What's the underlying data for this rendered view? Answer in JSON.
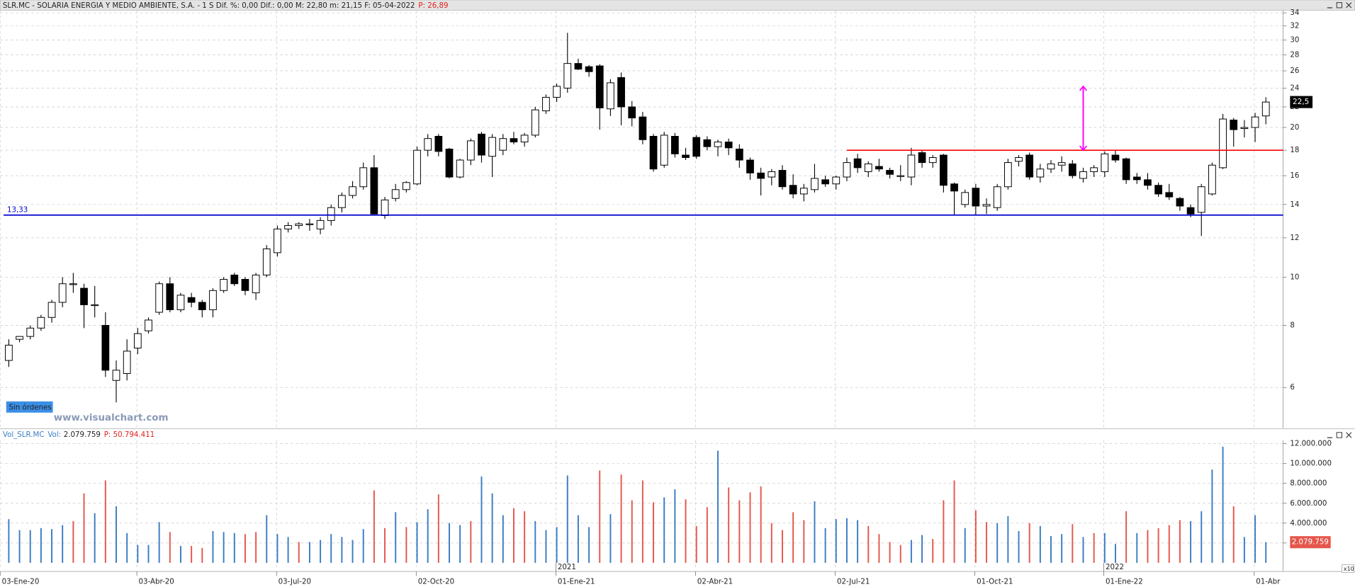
{
  "header": {
    "text": "SLR.MC - SOLARIA ENERGIA Y MEDIO AMBIENTE, S.A. -  1 S  Dif. %: 0,00  Dif.: 0,00  M: 22,80  m: 21,15  F: 05-04-2022",
    "price": "P: 26,89"
  },
  "volume_header": {
    "name": "Vol_SLR.MC",
    "vol_label": "Vol:",
    "price": "P: 50.794.411"
  },
  "orders_label": "Sin órdenes",
  "watermark": "www.visualchart.com",
  "scale_label": "x10",
  "chart_data": [
    {
      "type": "candlestick",
      "categories": [
        "03-Ene-20",
        null,
        null,
        null,
        null,
        null,
        null,
        null,
        null,
        null,
        null,
        null,
        "03-Abr-20",
        null,
        null,
        null,
        null,
        null,
        null,
        null,
        null,
        null,
        null,
        null,
        null,
        "03-Jul-20",
        null,
        null,
        null,
        null,
        null,
        null,
        null,
        null,
        null,
        null,
        null,
        null,
        "02-Oct-20",
        null,
        null,
        null,
        null,
        null,
        null,
        null,
        null,
        null,
        null,
        null,
        null,
        "01-Ene-21",
        null,
        null,
        null,
        null,
        null,
        null,
        null,
        null,
        null,
        null,
        null,
        null,
        "02-Abr-21",
        null,
        null,
        null,
        null,
        null,
        null,
        null,
        null,
        null,
        null,
        null,
        null,
        "02-Jul-21",
        null,
        null,
        null,
        null,
        null,
        null,
        null,
        null,
        null,
        null,
        null,
        null,
        "01-Oct-21",
        null,
        null,
        null,
        null,
        null,
        null,
        null,
        null,
        null,
        null,
        null,
        "01-Ene-22",
        null,
        null,
        null,
        null,
        null,
        null,
        null,
        null,
        null,
        null,
        null,
        null,
        null,
        "01-Abr",
        null
      ],
      "years": [
        {
          "index": 51,
          "label": "2021"
        },
        {
          "index": 102,
          "label": "2022"
        }
      ],
      "open": [
        6.8,
        7.5,
        7.6,
        7.9,
        8.3,
        8.9,
        9.7,
        9.5,
        8.8,
        8.0,
        6.2,
        6.4,
        7.2,
        7.8,
        8.5,
        9.7,
        8.6,
        9.1,
        8.9,
        8.6,
        9.4,
        10.1,
        9.9,
        9.3,
        10.1,
        11.2,
        12.5,
        12.7,
        12.8,
        12.5,
        13.0,
        13.8,
        14.6,
        15.2,
        16.6,
        13.3,
        14.4,
        15.0,
        15.4,
        18.0,
        19.2,
        18.1,
        15.9,
        17.2,
        19.4,
        17.5,
        18.0,
        19.0,
        18.7,
        19.3,
        21.6,
        23.0,
        24.0,
        26.9,
        26.5,
        26.6,
        21.8,
        25.2,
        22.0,
        21.0,
        19.2,
        16.8,
        19.2,
        17.6,
        19.1,
        18.9,
        18.3,
        18.7,
        18.1,
        17.2,
        16.2,
        15.9,
        16.4,
        15.3,
        14.7,
        15.0,
        15.7,
        15.4,
        15.9,
        17.3,
        16.3,
        16.7,
        16.4,
        16.0,
        15.9,
        17.8,
        17.0,
        17.6,
        15.4,
        14.0,
        15.1,
        13.9,
        13.8,
        15.2,
        17.1,
        17.6,
        15.9,
        16.5,
        16.8,
        16.9,
        15.8,
        16.3,
        16.3,
        17.6,
        17.3,
        15.9,
        15.7,
        15.3,
        14.8,
        14.4,
        13.8,
        13.5,
        14.7,
        16.6,
        20.7,
        19.9,
        20.0,
        21.1
      ],
      "high": [
        7.5,
        7.6,
        8.0,
        8.4,
        9.0,
        10.0,
        10.2,
        9.7,
        9.6,
        8.5,
        6.8,
        7.5,
        7.9,
        8.3,
        9.8,
        10.0,
        9.3,
        9.3,
        9.0,
        9.5,
        10.0,
        10.2,
        10.0,
        10.2,
        11.6,
        12.7,
        12.9,
        12.9,
        13.1,
        13.2,
        14.0,
        14.8,
        15.6,
        17.0,
        17.6,
        14.5,
        15.4,
        15.6,
        18.3,
        19.4,
        19.4,
        18.2,
        17.3,
        19.0,
        19.6,
        19.4,
        19.4,
        19.6,
        19.5,
        22.0,
        23.3,
        24.5,
        31.0,
        27.5,
        26.7,
        26.8,
        25.0,
        25.8,
        22.6,
        21.5,
        19.4,
        19.6,
        19.5,
        18.2,
        19.3,
        19.2,
        18.9,
        19.0,
        18.5,
        17.4,
        16.6,
        16.5,
        16.8,
        16.1,
        15.4,
        16.9,
        16.0,
        16.0,
        17.4,
        17.7,
        17.1,
        17.3,
        16.6,
        16.8,
        18.2,
        18.0,
        17.6,
        17.7,
        15.5,
        15.0,
        15.4,
        14.4,
        15.4,
        17.3,
        17.6,
        17.8,
        16.9,
        17.2,
        17.5,
        17.2,
        16.6,
        16.8,
        17.9,
        18.0,
        17.4,
        16.2,
        16.2,
        15.5,
        15.4,
        14.5,
        14.0,
        15.4,
        17.0,
        21.3,
        20.9,
        20.7,
        21.4,
        23.0
      ],
      "low": [
        6.6,
        7.4,
        7.5,
        7.8,
        8.1,
        8.7,
        9.3,
        7.9,
        8.3,
        6.3,
        5.6,
        6.2,
        7.0,
        7.7,
        8.4,
        8.5,
        8.5,
        8.7,
        8.3,
        8.3,
        9.3,
        9.6,
        9.2,
        9.0,
        10.0,
        11.0,
        12.3,
        12.5,
        12.4,
        12.2,
        12.7,
        13.5,
        14.4,
        15.0,
        13.3,
        13.1,
        14.2,
        14.8,
        15.3,
        17.5,
        17.5,
        15.8,
        15.8,
        16.8,
        17.0,
        15.9,
        17.6,
        18.5,
        18.3,
        19.1,
        21.3,
        22.5,
        23.5,
        26.1,
        25.3,
        19.8,
        21.1,
        20.2,
        20.1,
        18.5,
        16.3,
        16.6,
        17.4,
        17.2,
        17.3,
        18.0,
        17.5,
        17.6,
        16.6,
        15.7,
        14.6,
        15.3,
        15.0,
        14.4,
        14.2,
        14.8,
        15.2,
        15.0,
        15.6,
        16.2,
        15.9,
        16.3,
        15.8,
        15.6,
        15.3,
        16.6,
        16.6,
        14.8,
        13.3,
        13.8,
        13.3,
        13.4,
        13.6,
        15.0,
        16.7,
        15.7,
        15.5,
        16.2,
        16.3,
        15.8,
        15.5,
        15.9,
        15.9,
        17.0,
        15.4,
        15.4,
        15.0,
        14.5,
        14.3,
        13.6,
        13.2,
        12.1,
        14.6,
        16.5,
        18.3,
        19.1,
        18.7,
        20.3
      ],
      "close": [
        7.3,
        7.6,
        7.9,
        8.3,
        8.9,
        9.7,
        9.7,
        8.8,
        8.8,
        6.5,
        6.5,
        7.1,
        7.7,
        8.2,
        9.7,
        8.6,
        9.2,
        8.9,
        8.6,
        9.4,
        9.9,
        9.7,
        9.4,
        10.1,
        11.4,
        12.5,
        12.7,
        12.8,
        12.8,
        13.0,
        13.8,
        14.6,
        15.2,
        16.6,
        13.4,
        14.3,
        15.0,
        15.5,
        18.0,
        19.0,
        17.9,
        15.9,
        17.2,
        18.8,
        17.6,
        19.1,
        19.0,
        18.7,
        19.3,
        21.7,
        23.0,
        24.2,
        26.9,
        26.2,
        25.9,
        21.9,
        24.6,
        22.0,
        20.9,
        18.9,
        16.5,
        19.3,
        17.7,
        17.4,
        17.5,
        18.3,
        18.7,
        18.2,
        17.2,
        16.2,
        15.8,
        16.3,
        15.2,
        14.7,
        15.1,
        15.8,
        15.4,
        15.9,
        17.0,
        16.6,
        16.9,
        16.5,
        16.1,
        16.0,
        17.6,
        17.0,
        17.4,
        15.3,
        14.9,
        14.8,
        13.9,
        14.0,
        15.2,
        17.0,
        17.4,
        15.9,
        16.5,
        16.9,
        17.0,
        16.0,
        16.3,
        16.6,
        17.7,
        17.2,
        15.7,
        15.7,
        15.3,
        14.7,
        14.5,
        13.9,
        13.4,
        15.2,
        16.8,
        20.8,
        19.8,
        20.0,
        21.0,
        22.5
      ],
      "last_label": {
        "value": 22.5,
        "label": "22,5"
      },
      "log_scale": true,
      "grid": true,
      "ylim": [
        4.97,
        34.4
      ],
      "yticks": [
        6,
        8,
        10,
        12,
        14,
        16,
        18,
        20,
        22,
        24,
        26,
        28,
        30,
        32,
        34
      ],
      "hlines": [
        {
          "value": 13.33,
          "label": "13,33",
          "color": "#0000cc"
        },
        {
          "value": 18,
          "start": 78,
          "color": "#ff0000"
        }
      ],
      "arrows": [
        {
          "at": 100,
          "from": 18,
          "to": 24.2,
          "color": "#ff00ff"
        }
      ]
    },
    {
      "type": "bar",
      "values": [
        4400000,
        3300000,
        3300000,
        3500000,
        3400000,
        3800000,
        4200000,
        7000000,
        5000000,
        8300000,
        5700000,
        3000000,
        1800000,
        1800000,
        4100000,
        3100000,
        1700000,
        1700000,
        1500000,
        3200000,
        3100000,
        3000000,
        2900000,
        3100000,
        4800000,
        2900000,
        2600000,
        2100000,
        2100000,
        2300000,
        2900000,
        2600000,
        2300000,
        3400000,
        7300000,
        3500000,
        5100000,
        3600000,
        4100000,
        5400000,
        6900000,
        4000000,
        3800000,
        4200000,
        8700000,
        7000000,
        4800000,
        5500000,
        5200000,
        4200000,
        3300000,
        3600000,
        8800000,
        4800000,
        3600000,
        9300000,
        4900000,
        8900000,
        6300000,
        8300000,
        6100000,
        6600000,
        7400000,
        6400000,
        3700000,
        5600000,
        11300000,
        7600000,
        6300000,
        7100000,
        7700000,
        4000000,
        3300000,
        5100000,
        4300000,
        6200000,
        3500000,
        4400000,
        4500000,
        4300000,
        3700000,
        2900000,
        2100000,
        1800000,
        2300000,
        2800000,
        2400000,
        6300000,
        8300000,
        3500000,
        5300000,
        4100000,
        4000000,
        4700000,
        3200000,
        4000000,
        3700000,
        2700000,
        2900000,
        3900000,
        2600000,
        3000000,
        3000000,
        1900000,
        5200000,
        3000000,
        3300000,
        3500000,
        3800000,
        4300000,
        4200000,
        5200000,
        9400000,
        11700000,
        5700000,
        2600000,
        4800000,
        2079759
      ],
      "colors": [
        "#3b7dc4",
        "#3b7dc4",
        "#3b7dc4",
        "#3b7dc4",
        "#3b7dc4",
        "#3b7dc4",
        "#e5574c",
        "#e5574c",
        "#3b7dc4",
        "#e5574c",
        "#3b7dc4",
        "#3b7dc4",
        "#3b7dc4",
        "#3b7dc4",
        "#3b7dc4",
        "#e5574c",
        "#3b7dc4",
        "#e5574c",
        "#e5574c",
        "#3b7dc4",
        "#3b7dc4",
        "#3b7dc4",
        "#e5574c",
        "#e5574c",
        "#3b7dc4",
        "#3b7dc4",
        "#3b7dc4",
        "#e5574c",
        "#3b7dc4",
        "#3b7dc4",
        "#3b7dc4",
        "#3b7dc4",
        "#3b7dc4",
        "#3b7dc4",
        "#e5574c",
        "#e5574c",
        "#3b7dc4",
        "#e5574c",
        "#3b7dc4",
        "#3b7dc4",
        "#e5574c",
        "#3b7dc4",
        "#3b7dc4",
        "#e5574c",
        "#3b7dc4",
        "#3b7dc4",
        "#3b7dc4",
        "#e5574c",
        "#e5574c",
        "#3b7dc4",
        "#3b7dc4",
        "#3b7dc4",
        "#3b7dc4",
        "#3b7dc4",
        "#3b7dc4",
        "#e5574c",
        "#3b7dc4",
        "#e5574c",
        "#e5574c",
        "#e5574c",
        "#e5574c",
        "#3b7dc4",
        "#3b7dc4",
        "#e5574c",
        "#e5574c",
        "#e5574c",
        "#3b7dc4",
        "#e5574c",
        "#e5574c",
        "#e5574c",
        "#e5574c",
        "#e5574c",
        "#e5574c",
        "#e5574c",
        "#e5574c",
        "#3b7dc4",
        "#3b7dc4",
        "#3b7dc4",
        "#3b7dc4",
        "#3b7dc4",
        "#e5574c",
        "#e5574c",
        "#e5574c",
        "#e5574c",
        "#3b7dc4",
        "#3b7dc4",
        "#e5574c",
        "#e5574c",
        "#e5574c",
        "#3b7dc4",
        "#e5574c",
        "#e5574c",
        "#3b7dc4",
        "#3b7dc4",
        "#3b7dc4",
        "#e5574c",
        "#3b7dc4",
        "#3b7dc4",
        "#3b7dc4",
        "#e5574c",
        "#3b7dc4",
        "#e5574c",
        "#3b7dc4",
        "#3b7dc4",
        "#e5574c",
        "#3b7dc4",
        "#e5574c",
        "#e5574c",
        "#e5574c",
        "#e5574c",
        "#3b7dc4",
        "#3b7dc4",
        "#3b7dc4",
        "#3b7dc4",
        "#e5574c",
        "#3b7dc4",
        "#3b7dc4",
        "#3b7dc4"
      ],
      "last_label": {
        "value": 2079759,
        "label": "2.079.759"
      },
      "ylim": [
        0,
        12350000
      ],
      "yticks": [
        {
          "value": 2000000,
          "label": "2.000.000"
        },
        {
          "value": 4000000,
          "label": "4.000.000"
        },
        {
          "value": 6000000,
          "label": "6.000.000"
        },
        {
          "value": 8000000,
          "label": "8.000.000"
        },
        {
          "value": 10000000,
          "label": "10.000.000"
        },
        {
          "value": 12000000,
          "label": "12.000.000"
        }
      ],
      "grid": true
    }
  ]
}
